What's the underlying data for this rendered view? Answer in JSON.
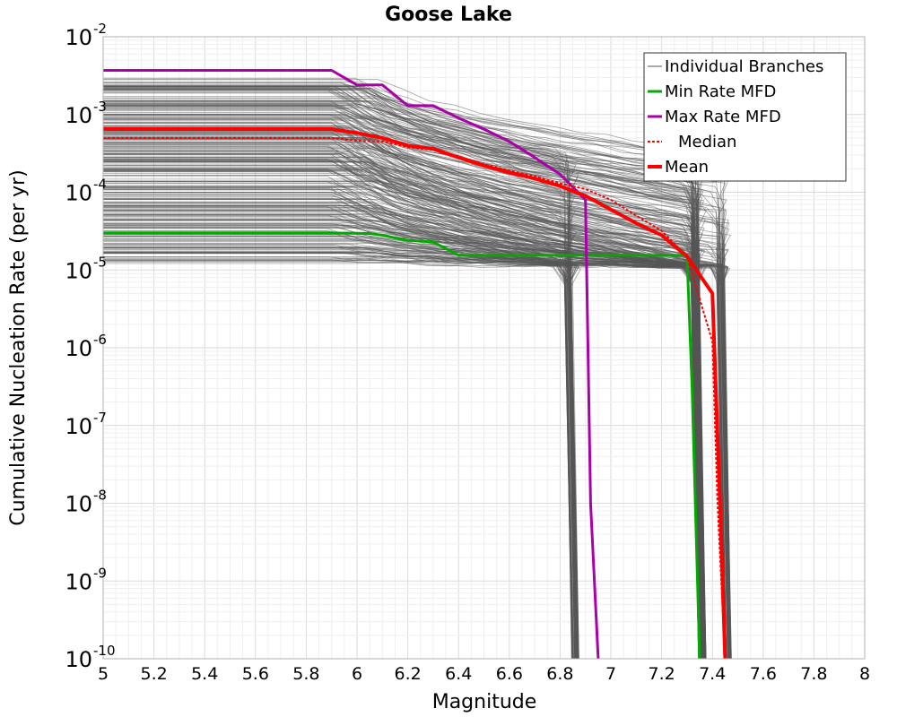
{
  "chart_data": {
    "type": "line",
    "title": "Goose Lake",
    "xlabel": "Magnitude",
    "ylabel": "Cumulative Nucleation Rate (per yr)",
    "xlim": [
      5,
      8
    ],
    "ylim": [
      1e-10,
      0.01
    ],
    "yscale": "log",
    "grid": true,
    "legend_position": "top-right",
    "x_ticks": [
      "5",
      "5.2",
      "5.4",
      "5.6",
      "5.8",
      "6",
      "6.2",
      "6.4",
      "6.6",
      "6.8",
      "7",
      "7.2",
      "7.4",
      "7.6",
      "7.8",
      "8"
    ],
    "y_ticks": [
      {
        "value": 0.01,
        "base": "10",
        "exp": "-2"
      },
      {
        "value": 0.001,
        "base": "10",
        "exp": "-3"
      },
      {
        "value": 0.0001,
        "base": "10",
        "exp": "-4"
      },
      {
        "value": 1e-05,
        "base": "10",
        "exp": "-5"
      },
      {
        "value": 1e-06,
        "base": "10",
        "exp": "-6"
      },
      {
        "value": 1e-07,
        "base": "10",
        "exp": "-7"
      },
      {
        "value": 1e-08,
        "base": "10",
        "exp": "-8"
      },
      {
        "value": 1e-09,
        "base": "10",
        "exp": "-9"
      },
      {
        "value": 1e-10,
        "base": "10",
        "exp": "-10"
      }
    ],
    "branches": {
      "name": "Individual Branches",
      "color": "#555555",
      "plateau_range": [
        1.2e-05,
        0.003
      ],
      "groups": [
        {
          "mmax": 6.85,
          "share": 0.25
        },
        {
          "mmax": 7.35,
          "share": 0.55
        },
        {
          "mmax": 7.45,
          "share": 0.2
        }
      ]
    },
    "series": [
      {
        "name": "Min Rate MFD",
        "color": "#00aa00",
        "width": 3,
        "dash": "",
        "x": [
          5.0,
          5.9,
          6.05,
          6.1,
          6.2,
          6.3,
          6.4,
          6.5,
          6.8,
          7.0,
          7.25,
          7.3,
          7.32,
          7.35
        ],
        "y": [
          3e-05,
          3e-05,
          2.95e-05,
          2.8e-05,
          2.4e-05,
          2.3e-05,
          1.55e-05,
          1.55e-05,
          1.55e-05,
          1.55e-05,
          1.55e-05,
          1.55e-05,
          3e-07,
          1e-10
        ]
      },
      {
        "name": "Max Rate MFD",
        "color": "#aa00aa",
        "width": 3,
        "dash": "",
        "x": [
          5.0,
          5.9,
          6.0,
          6.1,
          6.2,
          6.3,
          6.4,
          6.5,
          6.6,
          6.7,
          6.8,
          6.9,
          6.92,
          6.95
        ],
        "y": [
          0.0037,
          0.0037,
          0.0024,
          0.0024,
          0.0013,
          0.0013,
          0.0009,
          0.00065,
          0.00045,
          0.00028,
          0.00017,
          8e-05,
          1e-08,
          1e-10
        ]
      },
      {
        "name": "Median",
        "color": "#ff0000",
        "width": 2,
        "dash": "3,2",
        "x": [
          5.0,
          5.9,
          6.0,
          6.1,
          6.2,
          6.3,
          6.4,
          6.5,
          6.6,
          6.7,
          6.8,
          6.9,
          7.0,
          7.1,
          7.2,
          7.3,
          7.4,
          7.42,
          7.45
        ],
        "y": [
          0.0005,
          0.0005,
          0.00046,
          0.00045,
          0.00038,
          0.00035,
          0.00029,
          0.00023,
          0.00019,
          0.00016,
          0.00013,
          0.00011,
          8e-05,
          5e-05,
          3.2e-05,
          1.5e-05,
          1.2e-06,
          1e-08,
          1e-10
        ]
      },
      {
        "name": "Mean",
        "color": "#ff0000",
        "width": 4,
        "dash": "",
        "x": [
          5.0,
          5.9,
          6.0,
          6.1,
          6.2,
          6.3,
          6.4,
          6.5,
          6.6,
          6.7,
          6.8,
          6.9,
          7.0,
          7.1,
          7.2,
          7.3,
          7.4,
          7.43,
          7.45
        ],
        "y": [
          0.00065,
          0.00065,
          0.00058,
          0.0005,
          0.0004,
          0.00036,
          0.00028,
          0.00022,
          0.00018,
          0.00015,
          0.00012,
          9e-05,
          6e-05,
          4e-05,
          2.8e-05,
          1.5e-05,
          5e-06,
          1e-08,
          1e-10
        ]
      }
    ],
    "legend": [
      {
        "label": "Individual Branches",
        "color": "#555555",
        "width": 1,
        "dash": ""
      },
      {
        "label": "Min Rate MFD",
        "color": "#00aa00",
        "width": 3,
        "dash": ""
      },
      {
        "label": "Max Rate MFD",
        "color": "#aa00aa",
        "width": 3,
        "dash": ""
      },
      {
        "label": "Median",
        "color": "#ff0000",
        "width": 2,
        "dash": "3,2"
      },
      {
        "label": "Mean",
        "color": "#ff0000",
        "width": 4,
        "dash": ""
      }
    ]
  }
}
